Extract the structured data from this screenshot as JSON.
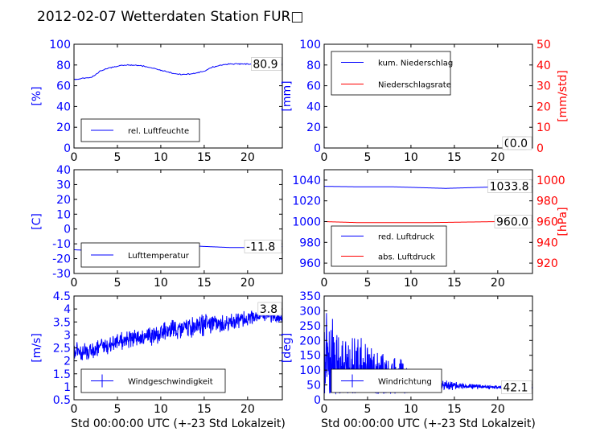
{
  "figure": {
    "title": "2012-02-07 Wetterdaten Station FUR□"
  },
  "colors": {
    "primary": "#0000ff",
    "secondary": "#ff0000"
  },
  "chart_data": [
    {
      "id": "humidity",
      "type": "line",
      "xlim": [
        0,
        24
      ],
      "ylim": [
        0,
        100
      ],
      "xticks": [
        0,
        5,
        10,
        15,
        20
      ],
      "yticks": [
        0,
        20,
        40,
        60,
        80,
        100
      ],
      "ylabel": "[%]",
      "annotation": "80.9",
      "legend_position": "lower-left",
      "series": [
        {
          "name": "rel. Luftfeuchte",
          "axis": "left",
          "color": "#0000ff",
          "x": [
            0,
            1,
            2,
            3,
            4,
            5,
            6,
            7,
            8,
            9,
            10,
            11,
            12,
            13,
            14,
            15,
            16,
            17,
            18,
            19,
            20,
            21,
            22,
            23,
            24
          ],
          "y": [
            66,
            67,
            68,
            74,
            77,
            79,
            80,
            80,
            79,
            77,
            75,
            73,
            71,
            71,
            72,
            74,
            78,
            80,
            81,
            81,
            81,
            80,
            80,
            81,
            81
          ]
        }
      ]
    },
    {
      "id": "precip",
      "type": "line",
      "xlim": [
        0,
        24
      ],
      "ylim": [
        0,
        100
      ],
      "ylim_right": [
        0,
        50
      ],
      "xticks": [
        0,
        5,
        10,
        15,
        20
      ],
      "yticks": [
        0,
        20,
        40,
        60,
        80,
        100
      ],
      "yticks_right": [
        0,
        10,
        20,
        30,
        40,
        50
      ],
      "ylabel": "[mm]",
      "ylabel_right": "[mm/std]",
      "annotation": "0.0",
      "annotation_right": "0.0",
      "legend_position": "upper-left",
      "series": [
        {
          "name": "kum. Niederschlag",
          "axis": "left",
          "color": "#0000ff",
          "x": [
            0,
            24
          ],
          "y": [
            0,
            0
          ]
        },
        {
          "name": "Niederschlagsrate",
          "axis": "right",
          "color": "#ff0000",
          "x": [
            0,
            24
          ],
          "y": [
            0,
            0
          ]
        }
      ]
    },
    {
      "id": "temperature",
      "type": "line",
      "xlim": [
        0,
        24
      ],
      "ylim": [
        -30,
        40
      ],
      "xticks": [
        0,
        5,
        10,
        15,
        20
      ],
      "yticks": [
        -30,
        -20,
        -10,
        0,
        10,
        20,
        30,
        40
      ],
      "ylabel": "[C]",
      "annotation": "-11.8",
      "legend_position": "lower-left",
      "series": [
        {
          "name": "Lufttemperatur",
          "axis": "left",
          "color": "#0000ff",
          "x": [
            0,
            2,
            4,
            6,
            8,
            10,
            12,
            14,
            16,
            18,
            20,
            22,
            24
          ],
          "y": [
            -14,
            -14.5,
            -15,
            -15,
            -14.5,
            -13.5,
            -12,
            -11.5,
            -12,
            -12.5,
            -12.5,
            -12,
            -11.8
          ]
        }
      ]
    },
    {
      "id": "pressure",
      "type": "line",
      "xlim": [
        0,
        24
      ],
      "ylim": [
        950,
        1050
      ],
      "ylim_right": [
        910,
        1010
      ],
      "xticks": [
        0,
        5,
        10,
        15,
        20
      ],
      "yticks": [
        960,
        980,
        1000,
        1020,
        1040
      ],
      "yticks_right": [
        920,
        940,
        960,
        980,
        1000
      ],
      "ylabel": "",
      "ylabel_right": "[hPa]",
      "annotation": "1033.8",
      "annotation_right": "960.0",
      "legend_position": "lower-left",
      "series": [
        {
          "name": "red. Luftdruck",
          "axis": "left",
          "color": "#0000ff",
          "x": [
            0,
            4,
            8,
            12,
            14,
            16,
            20,
            24
          ],
          "y": [
            1034,
            1033.5,
            1033.5,
            1032.5,
            1032,
            1032.5,
            1033.5,
            1034
          ]
        },
        {
          "name": "abs. Luftdruck",
          "axis": "right",
          "color": "#ff0000",
          "x": [
            0,
            4,
            8,
            12,
            16,
            20,
            24
          ],
          "y": [
            960,
            959,
            959,
            959,
            959.5,
            960,
            960
          ]
        }
      ]
    },
    {
      "id": "windspeed",
      "type": "line",
      "xlim": [
        0,
        24
      ],
      "ylim": [
        0.5,
        4.5
      ],
      "xticks": [
        0,
        5,
        10,
        15,
        20
      ],
      "yticks": [
        0.5,
        1.0,
        1.5,
        2.0,
        2.5,
        3.0,
        3.5,
        4.0,
        4.5
      ],
      "ylabel": "[m/s]",
      "xlabel": "Std 00:00:00 UTC (+-23 Std Lokalzeit)",
      "annotation": "3.8",
      "legend_position": "lower-left",
      "series": [
        {
          "name": "Windgeschwindigkeit",
          "axis": "left",
          "color": "#0000ff",
          "x": [
            0,
            1,
            2,
            3,
            4,
            5,
            6,
            7,
            8,
            9,
            10,
            11,
            12,
            13,
            14,
            15,
            16,
            17,
            18,
            19,
            20,
            21,
            22,
            23,
            24
          ],
          "y": [
            2.4,
            2.3,
            2.4,
            2.6,
            2.6,
            2.7,
            2.8,
            2.9,
            2.9,
            3.0,
            3.1,
            3.2,
            3.2,
            3.3,
            3.3,
            3.4,
            3.4,
            3.4,
            3.5,
            3.6,
            3.6,
            3.7,
            3.8,
            3.7,
            3.6
          ],
          "amplitude": [
            0.4,
            0.4,
            0.4,
            0.4,
            0.35,
            0.4,
            0.4,
            0.4,
            0.4,
            0.45,
            0.5,
            0.5,
            0.5,
            0.5,
            0.5,
            0.5,
            0.45,
            0.45,
            0.4,
            0.35,
            0.35,
            0.3,
            0.3,
            0.3,
            0.3
          ]
        }
      ]
    },
    {
      "id": "winddir",
      "type": "line",
      "xlim": [
        0,
        24
      ],
      "ylim": [
        0,
        350
      ],
      "xticks": [
        0,
        5,
        10,
        15,
        20
      ],
      "yticks": [
        0,
        50,
        100,
        150,
        200,
        250,
        300,
        350
      ],
      "ylabel": "[deg]",
      "xlabel": "Std 00:00:00 UTC (+-23 Std Lokalzeit)",
      "annotation": "42.1",
      "legend_position": "lower-left",
      "series": [
        {
          "name": "Windrichtung",
          "axis": "left",
          "color": "#0000ff",
          "x": [
            0,
            1,
            2,
            3,
            4,
            5,
            6,
            7,
            8,
            9,
            10,
            11,
            12,
            13,
            14,
            15,
            16,
            17,
            18,
            19,
            20,
            21,
            22,
            23,
            24
          ],
          "y": [
            150,
            120,
            110,
            100,
            95,
            90,
            85,
            80,
            80,
            75,
            70,
            60,
            55,
            50,
            50,
            48,
            45,
            45,
            45,
            42,
            42,
            42,
            42,
            42,
            42
          ],
          "amplitude": [
            170,
            170,
            150,
            140,
            130,
            120,
            110,
            100,
            90,
            80,
            60,
            40,
            30,
            25,
            20,
            15,
            10,
            10,
            8,
            8,
            6,
            6,
            5,
            5,
            5
          ]
        }
      ]
    }
  ]
}
